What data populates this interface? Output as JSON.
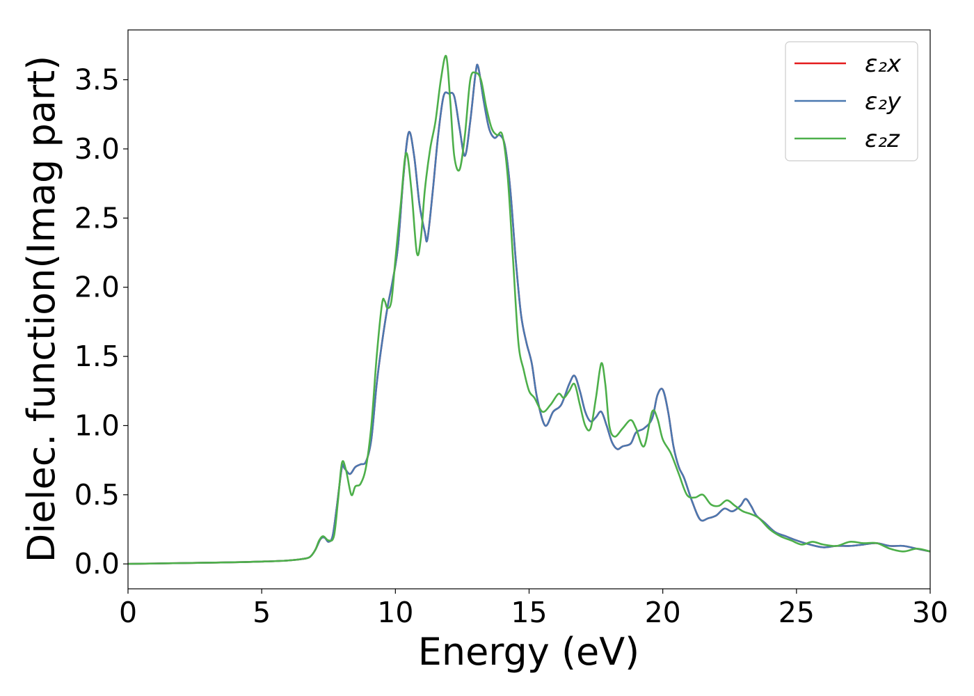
{
  "chart_data": {
    "type": "line",
    "title": "",
    "xlabel": "Energy (eV)",
    "ylabel": "Dielec. function(Imag part)",
    "xlim": [
      0,
      30
    ],
    "ylim": [
      -0.18,
      3.86
    ],
    "x_ticks": [
      "0",
      "5",
      "10",
      "15",
      "20",
      "25",
      "30"
    ],
    "y_ticks": [
      "0.0",
      "0.5",
      "1.0",
      "1.5",
      "2.0",
      "2.5",
      "3.0",
      "3.5"
    ],
    "x_tick_values": [
      0,
      5,
      10,
      15,
      20,
      25,
      30
    ],
    "y_tick_values": [
      0.0,
      0.5,
      1.0,
      1.5,
      2.0,
      2.5,
      3.0,
      3.5
    ],
    "grid": false,
    "legend_position": "top-right",
    "series": [
      {
        "name": "ε₂x",
        "color": "#e41a1c",
        "x": [
          0,
          1,
          2,
          3,
          4,
          5,
          5.5,
          6,
          6.5,
          6.8,
          7.0,
          7.2,
          7.35,
          7.5,
          7.65,
          7.8,
          8.0,
          8.1,
          8.3,
          8.5,
          8.7,
          8.9,
          9.1,
          9.3,
          9.5,
          9.7,
          9.9,
          10.1,
          10.3,
          10.5,
          10.7,
          10.9,
          11.1,
          11.2,
          11.4,
          11.6,
          11.8,
          12.0,
          12.2,
          12.4,
          12.6,
          12.8,
          13.0,
          13.1,
          13.3,
          13.5,
          13.7,
          13.9,
          14.1,
          14.3,
          14.5,
          14.7,
          14.9,
          15.1,
          15.3,
          15.6,
          15.9,
          16.2,
          16.5,
          16.7,
          16.9,
          17.1,
          17.3,
          17.5,
          17.7,
          17.9,
          18.1,
          18.3,
          18.5,
          18.8,
          19.0,
          19.3,
          19.6,
          19.8,
          20.0,
          20.2,
          20.4,
          20.6,
          20.8,
          21.1,
          21.4,
          21.7,
          22.0,
          22.3,
          22.6,
          22.9,
          23.1,
          23.3,
          23.5,
          23.8,
          24.2,
          24.6,
          25.0,
          25.5,
          26.0,
          26.5,
          27.0,
          27.5,
          28.0,
          28.5,
          29.0,
          29.5,
          30.0
        ],
        "values": [
          0.0,
          0.003,
          0.006,
          0.009,
          0.012,
          0.017,
          0.02,
          0.025,
          0.035,
          0.05,
          0.1,
          0.18,
          0.19,
          0.16,
          0.2,
          0.4,
          0.7,
          0.69,
          0.65,
          0.7,
          0.72,
          0.74,
          0.9,
          1.3,
          1.6,
          1.85,
          2.05,
          2.3,
          2.8,
          3.12,
          2.95,
          2.6,
          2.4,
          2.35,
          2.7,
          3.1,
          3.38,
          3.4,
          3.38,
          3.15,
          2.95,
          3.2,
          3.55,
          3.59,
          3.35,
          3.15,
          3.08,
          3.1,
          3.02,
          2.7,
          2.2,
          1.8,
          1.6,
          1.45,
          1.2,
          1.0,
          1.1,
          1.15,
          1.3,
          1.36,
          1.25,
          1.1,
          1.03,
          1.06,
          1.1,
          1.0,
          0.88,
          0.83,
          0.85,
          0.87,
          0.95,
          0.98,
          1.05,
          1.22,
          1.26,
          1.1,
          0.85,
          0.7,
          0.62,
          0.45,
          0.32,
          0.33,
          0.35,
          0.4,
          0.38,
          0.42,
          0.47,
          0.42,
          0.35,
          0.3,
          0.23,
          0.2,
          0.17,
          0.14,
          0.12,
          0.13,
          0.13,
          0.14,
          0.15,
          0.13,
          0.13,
          0.11,
          0.09
        ]
      },
      {
        "name": "ε₂y",
        "color": "#4a78b0",
        "x": [
          0,
          1,
          2,
          3,
          4,
          5,
          5.5,
          6,
          6.5,
          6.8,
          7.0,
          7.2,
          7.35,
          7.5,
          7.65,
          7.8,
          8.0,
          8.1,
          8.3,
          8.5,
          8.7,
          8.9,
          9.1,
          9.3,
          9.5,
          9.7,
          9.9,
          10.1,
          10.3,
          10.5,
          10.7,
          10.9,
          11.1,
          11.2,
          11.4,
          11.6,
          11.8,
          12.0,
          12.2,
          12.4,
          12.6,
          12.8,
          13.0,
          13.1,
          13.3,
          13.5,
          13.7,
          13.9,
          14.1,
          14.3,
          14.5,
          14.7,
          14.9,
          15.1,
          15.3,
          15.6,
          15.9,
          16.2,
          16.5,
          16.7,
          16.9,
          17.1,
          17.3,
          17.5,
          17.7,
          17.9,
          18.1,
          18.3,
          18.5,
          18.8,
          19.0,
          19.3,
          19.6,
          19.8,
          20.0,
          20.2,
          20.4,
          20.6,
          20.8,
          21.1,
          21.4,
          21.7,
          22.0,
          22.3,
          22.6,
          22.9,
          23.1,
          23.3,
          23.5,
          23.8,
          24.2,
          24.6,
          25.0,
          25.5,
          26.0,
          26.5,
          27.0,
          27.5,
          28.0,
          28.5,
          29.0,
          29.5,
          30.0
        ],
        "values": [
          0.0,
          0.003,
          0.006,
          0.009,
          0.012,
          0.017,
          0.02,
          0.025,
          0.035,
          0.05,
          0.1,
          0.18,
          0.19,
          0.16,
          0.2,
          0.4,
          0.7,
          0.69,
          0.65,
          0.7,
          0.72,
          0.74,
          0.9,
          1.3,
          1.6,
          1.85,
          2.05,
          2.3,
          2.8,
          3.12,
          2.95,
          2.6,
          2.4,
          2.35,
          2.7,
          3.1,
          3.38,
          3.4,
          3.38,
          3.15,
          2.95,
          3.2,
          3.55,
          3.59,
          3.35,
          3.15,
          3.08,
          3.1,
          3.02,
          2.7,
          2.2,
          1.8,
          1.6,
          1.45,
          1.2,
          1.0,
          1.1,
          1.15,
          1.3,
          1.36,
          1.25,
          1.1,
          1.03,
          1.06,
          1.1,
          1.0,
          0.88,
          0.83,
          0.85,
          0.87,
          0.95,
          0.98,
          1.05,
          1.22,
          1.26,
          1.1,
          0.85,
          0.7,
          0.62,
          0.45,
          0.32,
          0.33,
          0.35,
          0.4,
          0.38,
          0.42,
          0.47,
          0.42,
          0.35,
          0.3,
          0.23,
          0.2,
          0.17,
          0.14,
          0.12,
          0.13,
          0.13,
          0.14,
          0.15,
          0.13,
          0.13,
          0.11,
          0.09
        ]
      },
      {
        "name": "ε₂z",
        "color": "#4daf4a",
        "x": [
          0,
          1,
          2,
          3,
          4,
          5,
          5.5,
          6,
          6.5,
          6.8,
          7.0,
          7.15,
          7.3,
          7.5,
          7.7,
          7.85,
          8.0,
          8.15,
          8.35,
          8.5,
          8.7,
          8.9,
          9.1,
          9.3,
          9.5,
          9.6,
          9.7,
          9.85,
          10.0,
          10.2,
          10.4,
          10.6,
          10.8,
          10.95,
          11.1,
          11.3,
          11.5,
          11.7,
          11.9,
          12.05,
          12.2,
          12.4,
          12.6,
          12.8,
          13.0,
          13.2,
          13.4,
          13.6,
          13.8,
          14.0,
          14.2,
          14.4,
          14.6,
          14.8,
          15.0,
          15.2,
          15.5,
          15.8,
          16.1,
          16.3,
          16.5,
          16.7,
          16.9,
          17.1,
          17.3,
          17.5,
          17.7,
          17.85,
          18.0,
          18.2,
          18.5,
          18.8,
          19.0,
          19.3,
          19.6,
          19.8,
          20.0,
          20.3,
          20.6,
          20.9,
          21.2,
          21.5,
          21.8,
          22.1,
          22.4,
          22.7,
          23.0,
          23.3,
          23.6,
          24.0,
          24.4,
          24.8,
          25.2,
          25.6,
          26.0,
          26.5,
          27.0,
          27.5,
          28.0,
          28.5,
          29.0,
          29.5,
          30.0
        ],
        "values": [
          0.0,
          0.003,
          0.006,
          0.009,
          0.012,
          0.017,
          0.02,
          0.025,
          0.035,
          0.05,
          0.1,
          0.17,
          0.2,
          0.17,
          0.2,
          0.45,
          0.73,
          0.68,
          0.5,
          0.56,
          0.58,
          0.7,
          1.0,
          1.5,
          1.88,
          1.9,
          1.85,
          1.9,
          2.2,
          2.6,
          2.97,
          2.7,
          2.25,
          2.35,
          2.7,
          3.0,
          3.2,
          3.5,
          3.67,
          3.35,
          2.95,
          2.85,
          3.1,
          3.5,
          3.55,
          3.5,
          3.3,
          3.15,
          3.1,
          3.1,
          2.8,
          2.2,
          1.6,
          1.4,
          1.25,
          1.2,
          1.1,
          1.15,
          1.23,
          1.2,
          1.25,
          1.3,
          1.15,
          1.0,
          0.98,
          1.2,
          1.45,
          1.3,
          1.0,
          0.92,
          0.98,
          1.04,
          0.98,
          0.85,
          1.1,
          1.05,
          0.9,
          0.8,
          0.65,
          0.5,
          0.48,
          0.5,
          0.43,
          0.42,
          0.46,
          0.42,
          0.38,
          0.36,
          0.33,
          0.25,
          0.2,
          0.17,
          0.14,
          0.16,
          0.14,
          0.13,
          0.16,
          0.15,
          0.15,
          0.11,
          0.09,
          0.11,
          0.09
        ]
      }
    ]
  }
}
